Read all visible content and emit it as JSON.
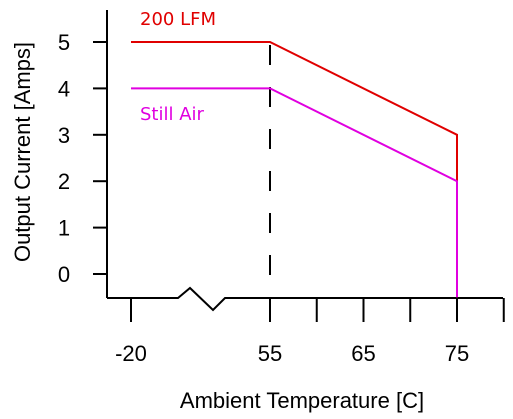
{
  "chart_data": {
    "type": "line",
    "title": "",
    "xlabel": "Ambient Temperature [C]",
    "ylabel": "Output Current [Amps]",
    "x_ticks": [
      {
        "value": -20,
        "label": "-20"
      },
      {
        "value": 55,
        "label": "55"
      },
      {
        "value": 65,
        "label": "65"
      },
      {
        "value": 75,
        "label": "75"
      }
    ],
    "y_ticks": [
      {
        "value": 0,
        "label": "0"
      },
      {
        "value": 1,
        "label": "1"
      },
      {
        "value": 2,
        "label": "2"
      },
      {
        "value": 3,
        "label": "3"
      },
      {
        "value": 4,
        "label": "4"
      },
      {
        "value": 5,
        "label": "5"
      }
    ],
    "ylim": [
      -0.5,
      5.5
    ],
    "x_axis_break": true,
    "reference_line": {
      "x": 55,
      "style": "dashed"
    },
    "series": [
      {
        "name": "200 LFM",
        "color": "#e00000",
        "x": [
          -20,
          55,
          75,
          75
        ],
        "y": [
          5,
          5,
          3,
          -0.5
        ]
      },
      {
        "name": "Still Air",
        "color": "#e000e0",
        "x": [
          -20,
          55,
          75,
          75
        ],
        "y": [
          4,
          4,
          2,
          -0.5
        ]
      }
    ],
    "grid": false,
    "legend": "inline labels"
  }
}
